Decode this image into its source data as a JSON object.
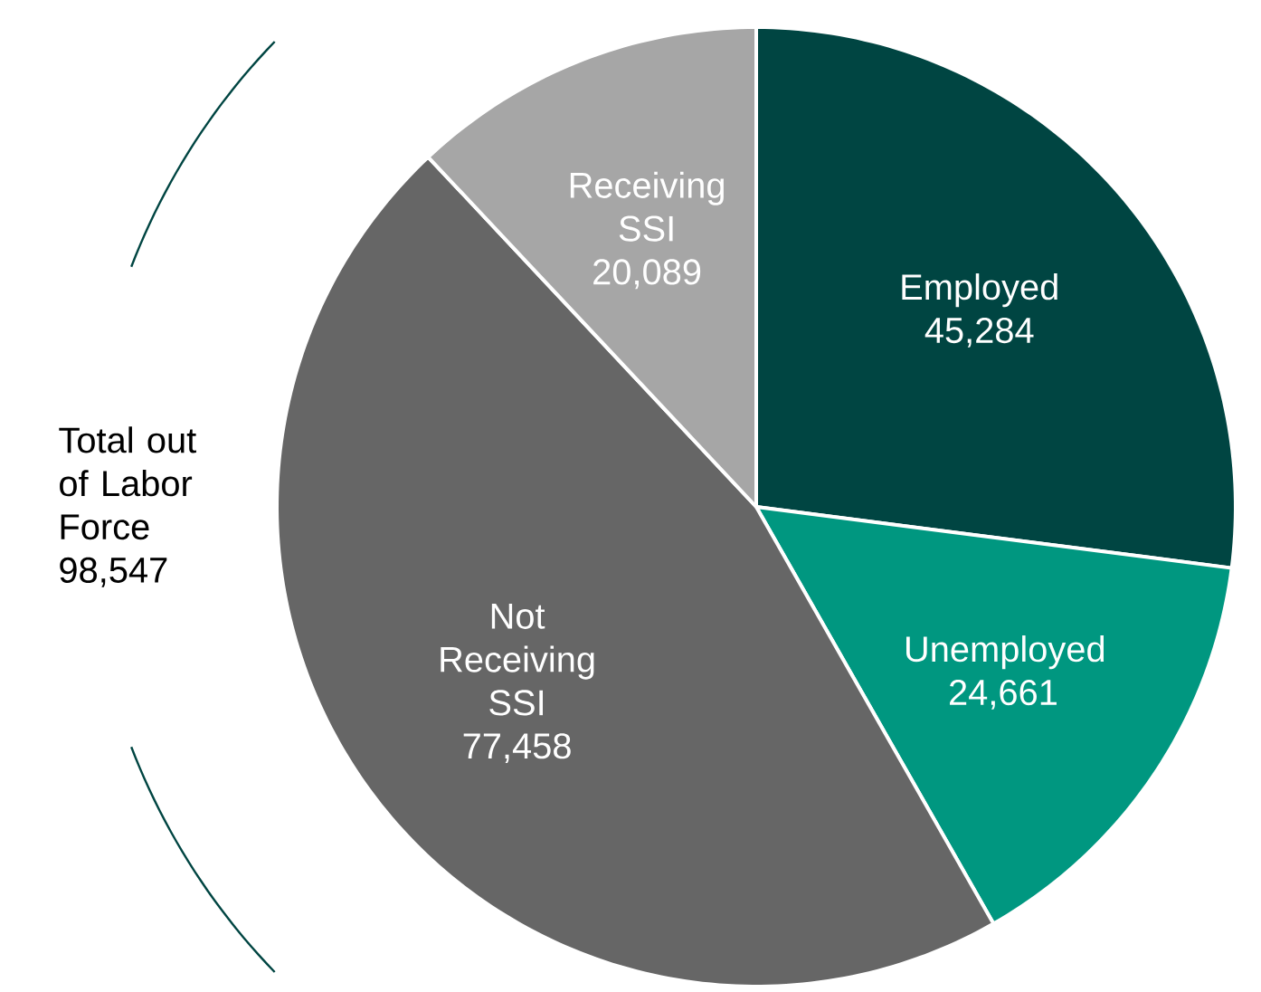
{
  "chart_data": {
    "type": "pie",
    "categories": [
      "Employed",
      "Unemployed",
      "Not Receiving SSI",
      "Receiving SSI"
    ],
    "values": [
      45284,
      24661,
      77458,
      20089
    ],
    "colors": [
      "#004542",
      "#009780",
      "#666666",
      "#a6a6a6"
    ],
    "value_labels": [
      "45,284",
      "24,661",
      "77,458",
      "20,089"
    ],
    "annotations": [
      "Total out of Labor Force 98,547"
    ]
  }
}
